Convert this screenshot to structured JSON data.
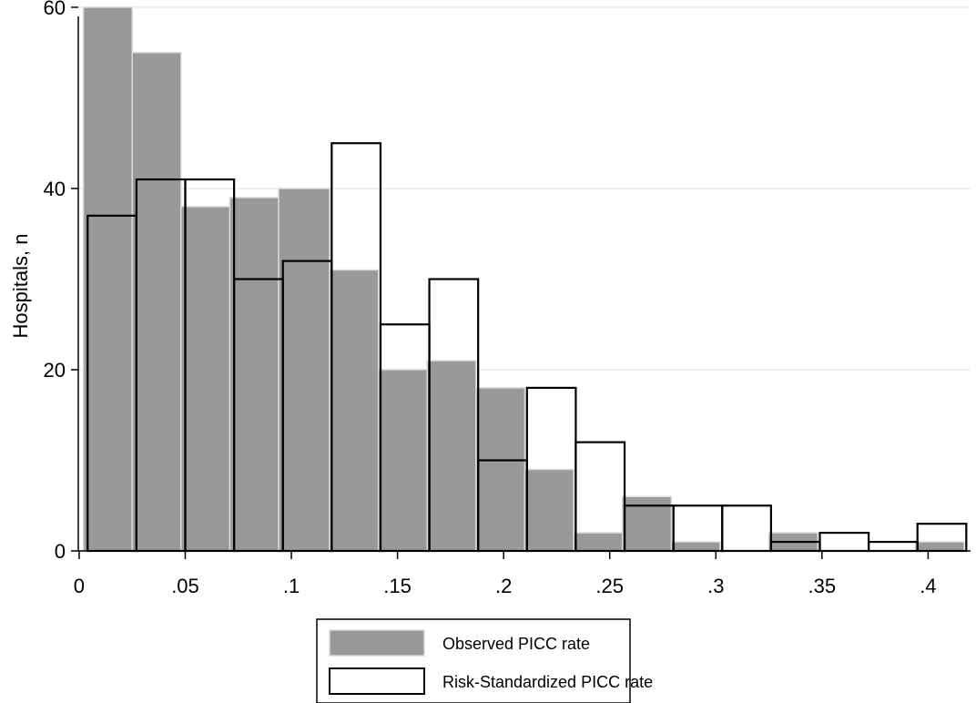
{
  "chart_data": {
    "type": "bar",
    "xlabel": "",
    "ylabel": "Hospitals, n",
    "xlim": [
      -0.0004,
      0.42
    ],
    "ylim": [
      0,
      60
    ],
    "xticks": [
      0,
      0.05,
      0.1,
      0.15,
      0.2,
      0.25,
      0.3,
      0.35,
      0.4
    ],
    "xtick_labels": [
      "0",
      ".05",
      ".1",
      ".15",
      ".2",
      ".25",
      ".3",
      ".35",
      ".4"
    ],
    "yticks": [
      0,
      20,
      40,
      60
    ],
    "ytick_labels": [
      "0",
      "20",
      "40",
      "60"
    ],
    "grid": "horizontal",
    "legend_position": "bottom",
    "series": [
      {
        "name": "Observed PICC rate",
        "style": "filled",
        "color": "#999999",
        "bins": [
          {
            "x0": 0.002,
            "x1": 0.025,
            "value": 60
          },
          {
            "x0": 0.025,
            "x1": 0.048,
            "value": 55
          },
          {
            "x0": 0.048,
            "x1": 0.071,
            "value": 38
          },
          {
            "x0": 0.071,
            "x1": 0.094,
            "value": 39
          },
          {
            "x0": 0.094,
            "x1": 0.118,
            "value": 40
          },
          {
            "x0": 0.118,
            "x1": 0.141,
            "value": 31
          },
          {
            "x0": 0.141,
            "x1": 0.164,
            "value": 20
          },
          {
            "x0": 0.164,
            "x1": 0.187,
            "value": 21
          },
          {
            "x0": 0.187,
            "x1": 0.21,
            "value": 18
          },
          {
            "x0": 0.21,
            "x1": 0.233,
            "value": 9
          },
          {
            "x0": 0.233,
            "x1": 0.256,
            "value": 2
          },
          {
            "x0": 0.256,
            "x1": 0.279,
            "value": 6
          },
          {
            "x0": 0.279,
            "x1": 0.302,
            "value": 1
          },
          {
            "x0": 0.302,
            "x1": 0.325,
            "value": 0
          },
          {
            "x0": 0.325,
            "x1": 0.348,
            "value": 2
          },
          {
            "x0": 0.348,
            "x1": 0.371,
            "value": 0
          },
          {
            "x0": 0.371,
            "x1": 0.394,
            "value": 0
          },
          {
            "x0": 0.394,
            "x1": 0.417,
            "value": 1
          }
        ]
      },
      {
        "name": "Risk-Standardized PICC rate",
        "style": "outline",
        "color": "#000000",
        "bins": [
          {
            "x0": 0.004,
            "x1": 0.027,
            "value": 37
          },
          {
            "x0": 0.027,
            "x1": 0.05,
            "value": 41
          },
          {
            "x0": 0.05,
            "x1": 0.073,
            "value": 41
          },
          {
            "x0": 0.073,
            "x1": 0.096,
            "value": 30
          },
          {
            "x0": 0.096,
            "x1": 0.119,
            "value": 32
          },
          {
            "x0": 0.119,
            "x1": 0.142,
            "value": 45
          },
          {
            "x0": 0.142,
            "x1": 0.165,
            "value": 25
          },
          {
            "x0": 0.165,
            "x1": 0.188,
            "value": 30
          },
          {
            "x0": 0.188,
            "x1": 0.211,
            "value": 10
          },
          {
            "x0": 0.211,
            "x1": 0.234,
            "value": 18
          },
          {
            "x0": 0.234,
            "x1": 0.257,
            "value": 12
          },
          {
            "x0": 0.257,
            "x1": 0.28,
            "value": 5
          },
          {
            "x0": 0.28,
            "x1": 0.303,
            "value": 5
          },
          {
            "x0": 0.303,
            "x1": 0.326,
            "value": 5
          },
          {
            "x0": 0.326,
            "x1": 0.349,
            "value": 1
          },
          {
            "x0": 0.349,
            "x1": 0.372,
            "value": 2
          },
          {
            "x0": 0.372,
            "x1": 0.395,
            "value": 1
          },
          {
            "x0": 0.395,
            "x1": 0.418,
            "value": 3
          }
        ]
      }
    ]
  }
}
